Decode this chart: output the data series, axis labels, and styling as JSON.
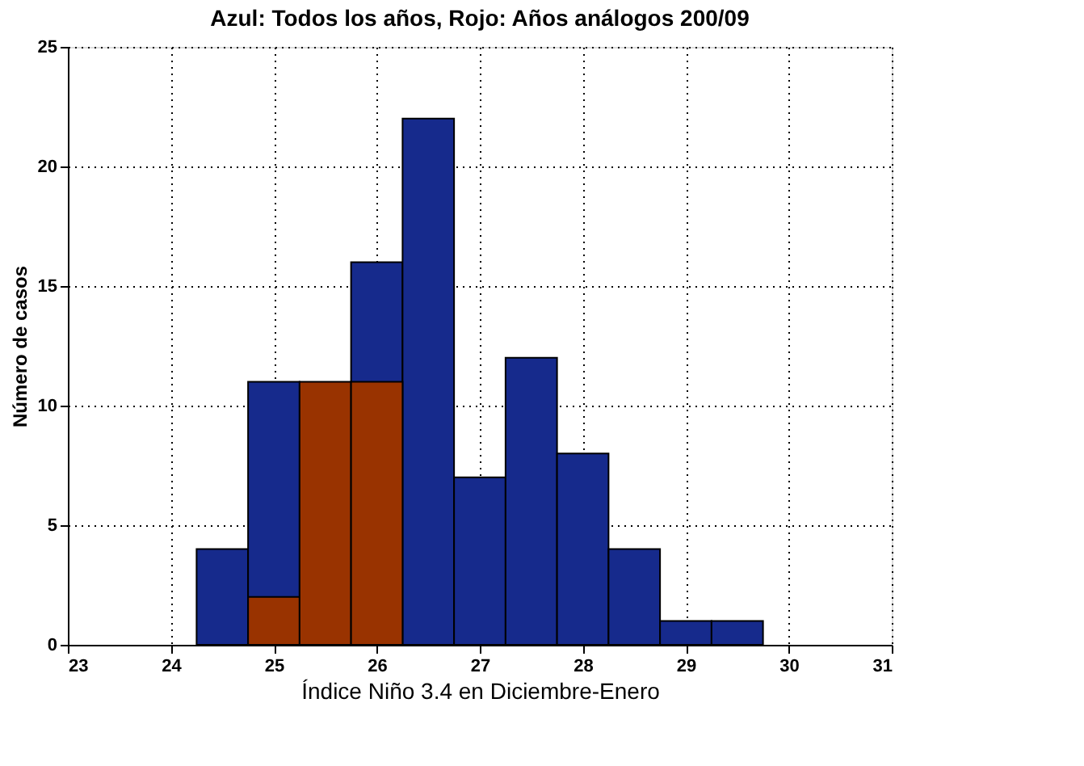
{
  "chart_data": {
    "type": "histogram",
    "title": "Azul: Todos los años, Rojo: Años análogos 200/09",
    "xlabel": "Índice Niño 3.4 en Diciembre-Enero",
    "ylabel": "Número de casos",
    "bins": [
      24.25,
      24.75,
      25.25,
      25.75,
      26.25,
      26.75,
      27.25,
      27.75,
      28.25,
      28.75,
      29.25,
      29.75
    ],
    "series": [
      {
        "color": "#162a8c",
        "values": [
          4,
          11,
          null,
          16,
          22,
          7,
          12,
          8,
          4,
          1,
          1
        ]
      },
      {
        "color": "#993300",
        "values": [
          null,
          2,
          11,
          11,
          null,
          null,
          null,
          null,
          null,
          null,
          null
        ]
      }
    ],
    "xlim": [
      23,
      31
    ],
    "xticks": [
      23,
      24,
      25,
      26,
      27,
      28,
      29,
      30,
      31
    ],
    "ylim": [
      0,
      25
    ],
    "yticks": [
      0,
      5,
      10,
      15,
      20,
      25
    ],
    "grid": true,
    "legend": false
  }
}
